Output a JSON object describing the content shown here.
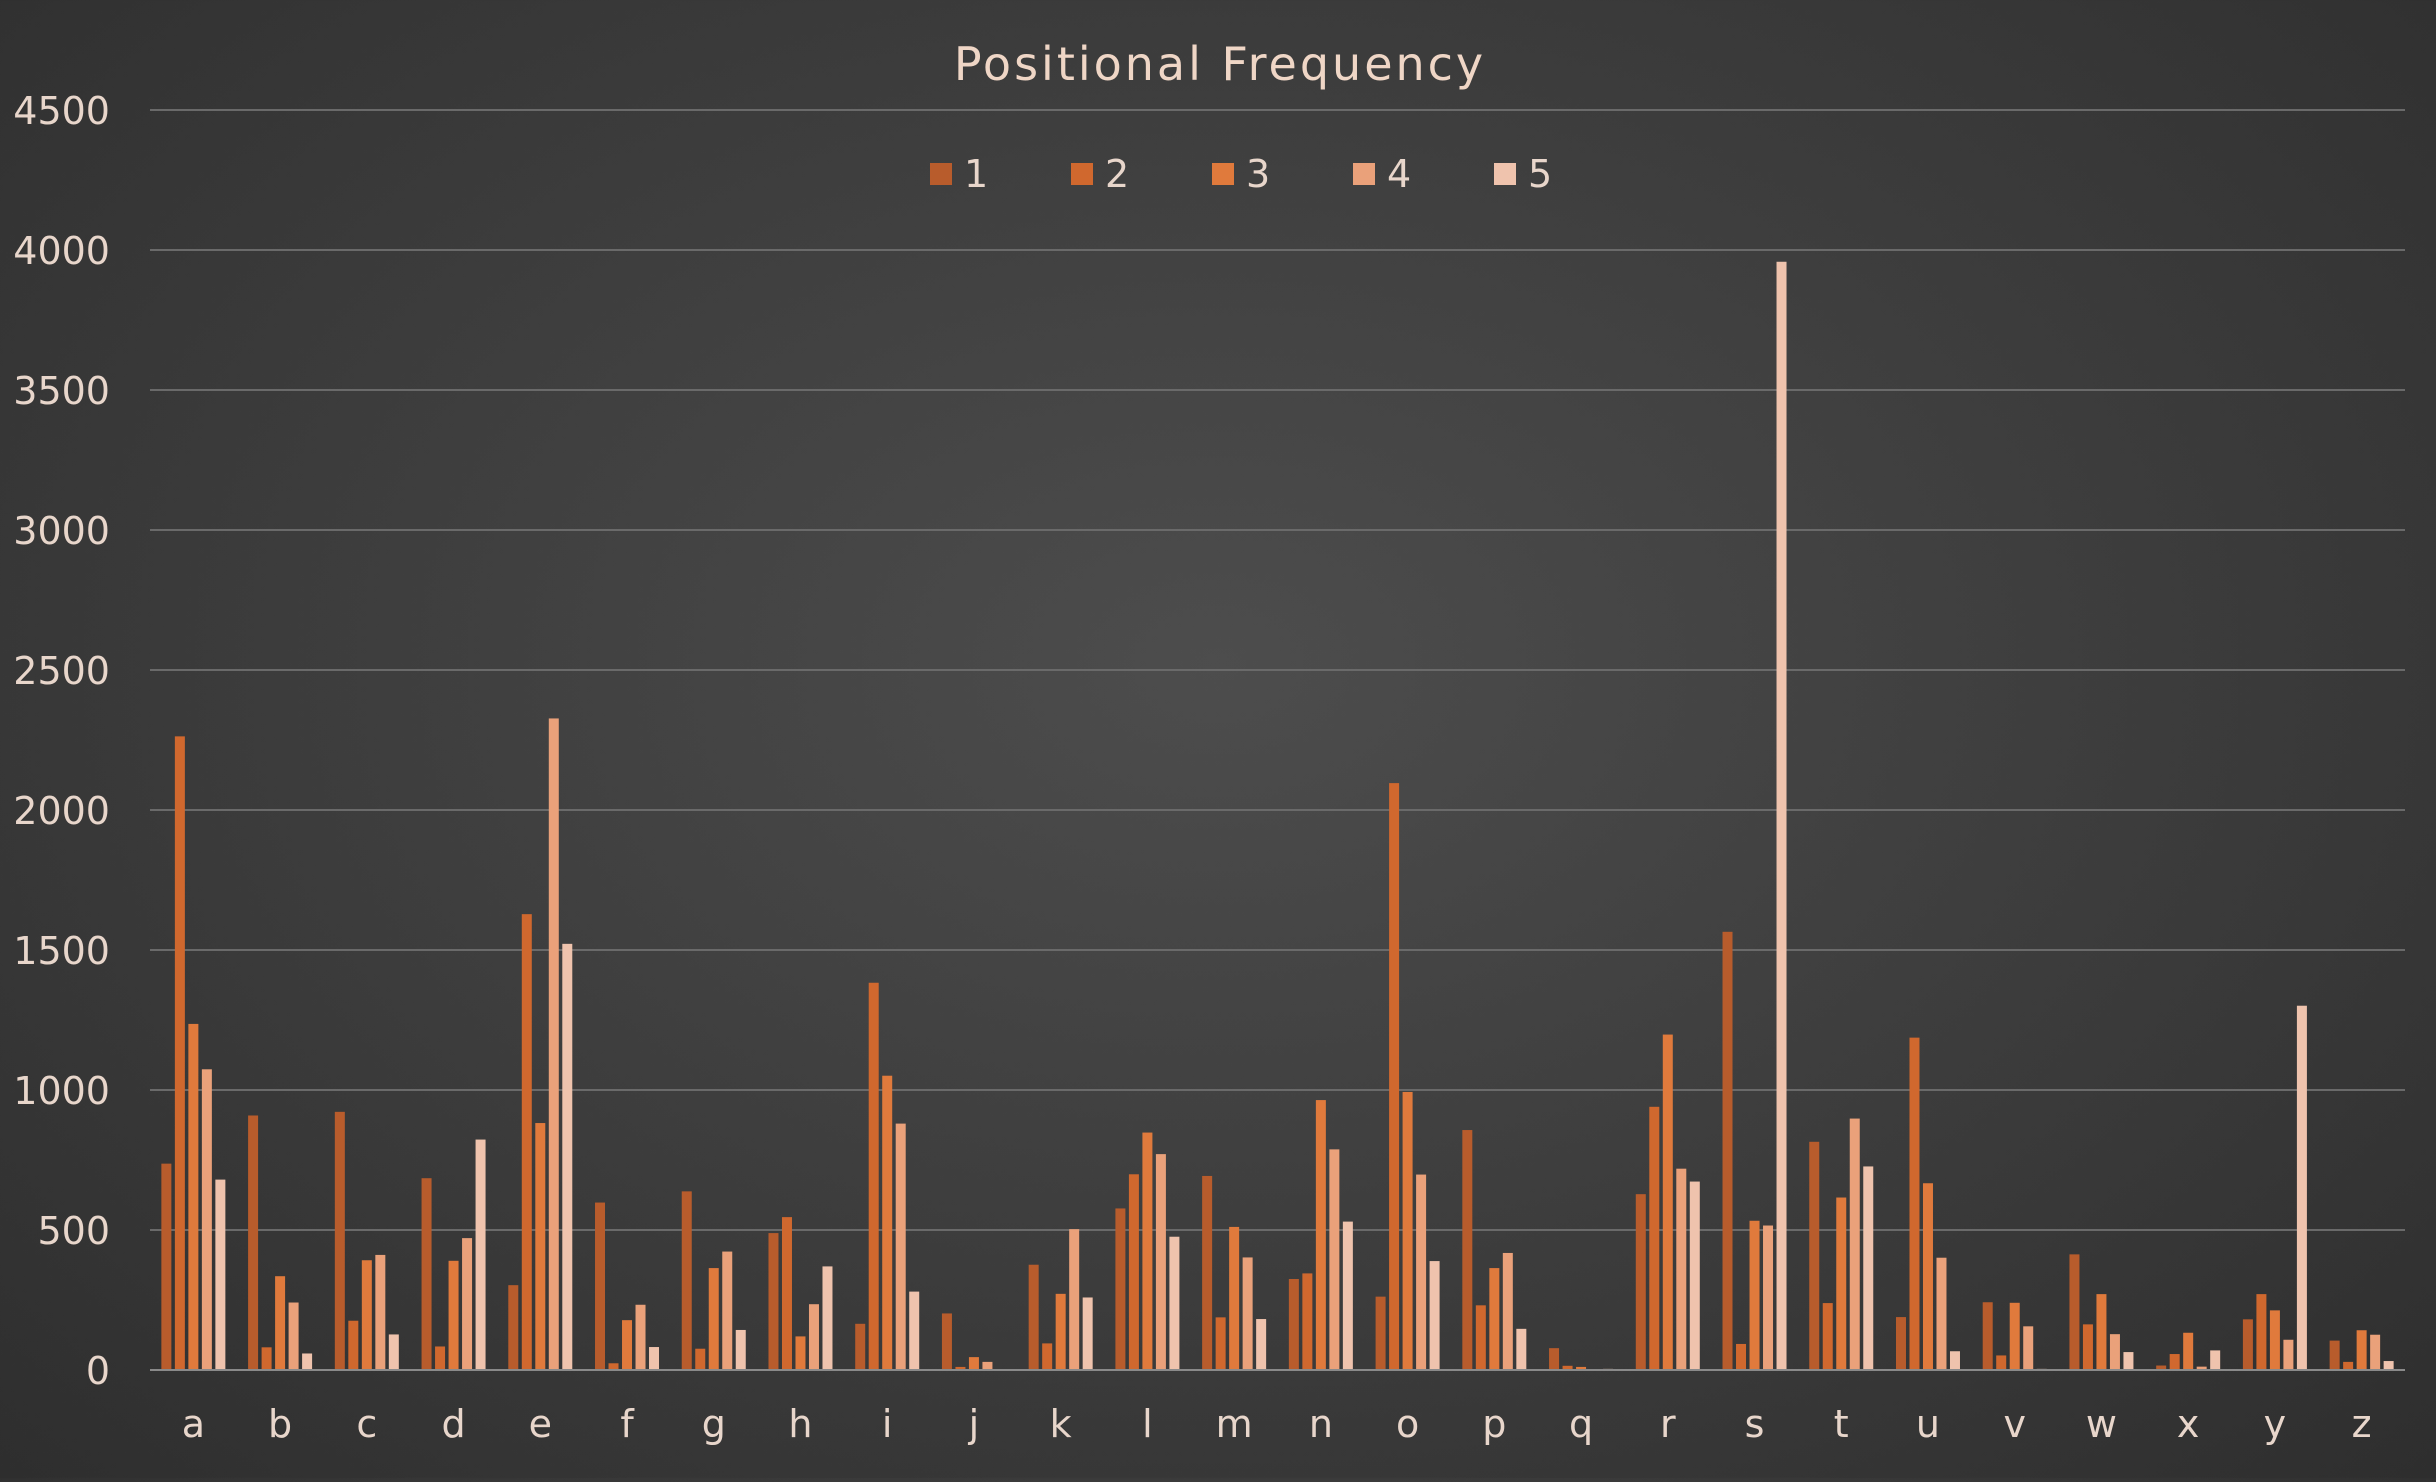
{
  "chart_data": {
    "type": "bar",
    "title": "Positional Frequency",
    "xlabel": "",
    "ylabel": "",
    "ylim": [
      0,
      4500
    ],
    "yticks": [
      0,
      500,
      1000,
      1500,
      2000,
      2500,
      3000,
      3500,
      4000,
      4500
    ],
    "grid": true,
    "legend_position": "top-center",
    "colors": [
      "#b85c2c",
      "#d0682e",
      "#e07a3c",
      "#eaa17a",
      "#efc3ad"
    ],
    "categories": [
      "a",
      "b",
      "c",
      "d",
      "e",
      "f",
      "g",
      "h",
      "i",
      "j",
      "k",
      "l",
      "m",
      "n",
      "o",
      "p",
      "q",
      "r",
      "s",
      "t",
      "u",
      "v",
      "w",
      "x",
      "y",
      "z"
    ],
    "series": [
      {
        "name": "1",
        "values": [
          737,
          909,
          922,
          685,
          303,
          598,
          638,
          489,
          165,
          202,
          376,
          577,
          693,
          325,
          262,
          857,
          78,
          628,
          1565,
          815,
          189,
          242,
          413,
          16,
          181,
          105
        ]
      },
      {
        "name": "2",
        "values": [
          2263,
          81,
          176,
          84,
          1628,
          24,
          76,
          546,
          1383,
          11,
          95,
          699,
          188,
          345,
          2096,
          231,
          15,
          940,
          93,
          239,
          1187,
          52,
          163,
          57,
          271,
          29
        ]
      },
      {
        "name": "3",
        "values": [
          1236,
          335,
          392,
          390,
          882,
          178,
          364,
          120,
          1051,
          46,
          272,
          848,
          511,
          964,
          993,
          364,
          11,
          1198,
          533,
          616,
          667,
          240,
          271,
          133,
          213,
          142
        ]
      },
      {
        "name": "4",
        "values": [
          1074,
          241,
          411,
          471,
          2327,
          233,
          423,
          235,
          880,
          29,
          503,
          771,
          402,
          788,
          698,
          418,
          2,
          719,
          516,
          898,
          401,
          156,
          128,
          12,
          108,
          126
        ]
      },
      {
        "name": "5",
        "values": [
          680,
          59,
          127,
          823,
          1522,
          82,
          143,
          370,
          280,
          2,
          259,
          476,
          182,
          530,
          389,
          147,
          4,
          673,
          3958,
          727,
          67,
          4,
          64,
          70,
          1301,
          32
        ]
      }
    ]
  }
}
